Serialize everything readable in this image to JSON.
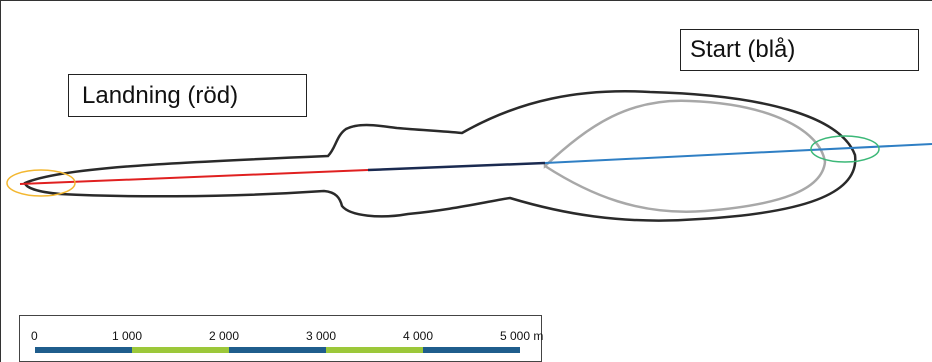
{
  "labels": {
    "start": "Start (blå)",
    "landing": "Landning (röd)"
  },
  "scale_bar": {
    "ticks": [
      "0",
      "1 000",
      "2 000",
      "3 000",
      "4 000",
      "5 000 m"
    ],
    "colors": [
      "#1f5d8c",
      "#9cc83a",
      "#1f5d8c",
      "#9cc83a",
      "#1f5d8c"
    ]
  },
  "colors": {
    "landing_track": "#e02020",
    "takeoff_track": "#2f7fc4",
    "overlap_segment": "#1a2a50",
    "outer_contour": "#2a2a2a",
    "inner_contour": "#a8a8a8",
    "landing_marker": "#f3b730",
    "start_marker": "#3cb878"
  }
}
